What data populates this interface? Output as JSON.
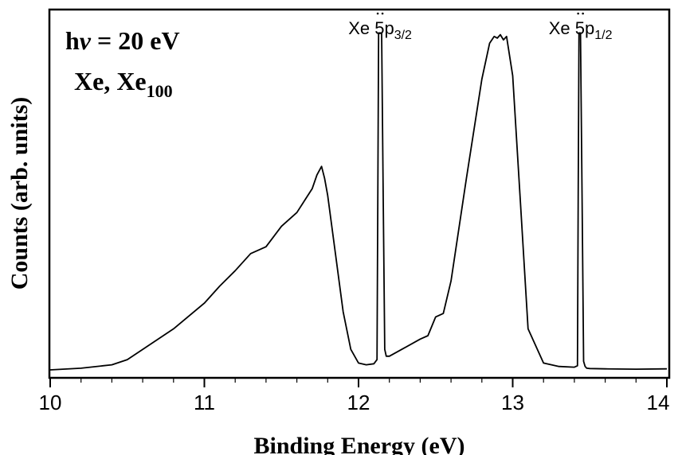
{
  "chart_data": {
    "type": "line",
    "title": "",
    "xlabel": "Binding Energy (eV)",
    "ylabel": "Counts (arb. units)",
    "xlim": [
      10,
      14
    ],
    "ylim": [
      0,
      1
    ],
    "grid": false,
    "y_tick_labels": false,
    "x_ticks": [
      "10",
      "11",
      "12",
      "13",
      "14"
    ],
    "annotations": {
      "line1": {
        "prefix": "h",
        "nu": "ν",
        "rest": " = 20 eV"
      },
      "line2": {
        "text": "Xe, Xe",
        "sub": "100"
      }
    },
    "peak_labels": [
      {
        "name": "Xe 5p",
        "sub": "3/2",
        "x": 12.14
      },
      {
        "name": "Xe 5p",
        "sub": "1/2",
        "x": 13.44
      }
    ],
    "series": [
      {
        "x": [
          10.0,
          10.2,
          10.4,
          10.5,
          10.6,
          10.8,
          11.0,
          11.1,
          11.2,
          11.3,
          11.4,
          11.5,
          11.6,
          11.7,
          11.73,
          11.76,
          11.78,
          11.8,
          11.85,
          11.9,
          11.95,
          12.0,
          12.05,
          12.1,
          12.12,
          12.125,
          12.13,
          12.15,
          12.16,
          12.17,
          12.18,
          12.2,
          12.3,
          12.4,
          12.45,
          12.5,
          12.55,
          12.6,
          12.7,
          12.8,
          12.85,
          12.88,
          12.9,
          12.92,
          12.94,
          12.96,
          13.0,
          13.05,
          13.1,
          13.2,
          13.3,
          13.4,
          13.42,
          13.425,
          13.43,
          13.44,
          13.45,
          13.46,
          13.47,
          13.48,
          13.5,
          13.6,
          13.8,
          14.0
        ],
        "y": [
          0.0,
          0.005,
          0.015,
          0.03,
          0.06,
          0.12,
          0.195,
          0.245,
          0.29,
          0.34,
          0.36,
          0.42,
          0.46,
          0.53,
          0.57,
          0.595,
          0.56,
          0.51,
          0.34,
          0.17,
          0.06,
          0.02,
          0.015,
          0.018,
          0.03,
          0.5,
          0.985,
          0.985,
          0.5,
          0.06,
          0.04,
          0.04,
          0.065,
          0.09,
          0.1,
          0.155,
          0.165,
          0.26,
          0.56,
          0.85,
          0.955,
          0.975,
          0.97,
          0.98,
          0.965,
          0.975,
          0.86,
          0.49,
          0.12,
          0.02,
          0.01,
          0.008,
          0.012,
          0.5,
          0.985,
          0.985,
          0.5,
          0.025,
          0.01,
          0.005,
          0.004,
          0.003,
          0.002,
          0.003
        ]
      }
    ]
  }
}
